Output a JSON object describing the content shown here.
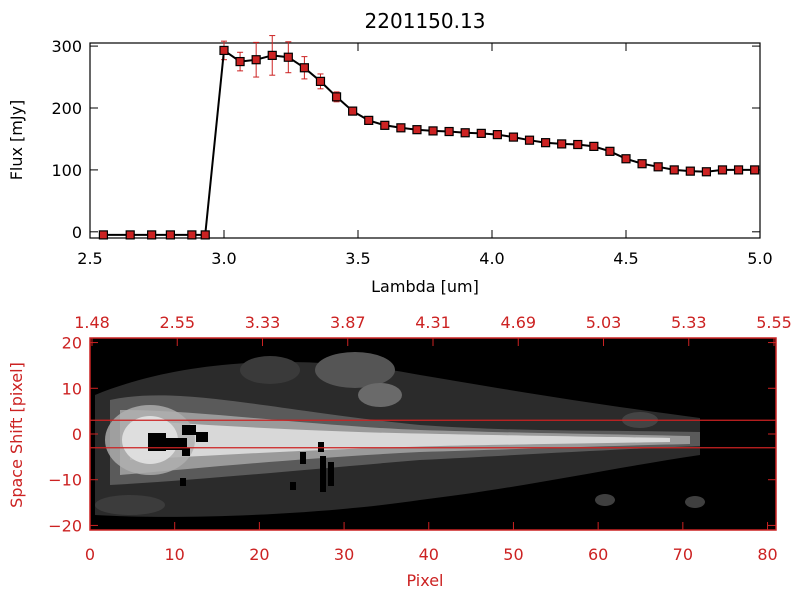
{
  "colors": {
    "axis_black": "#000000",
    "axis_red": "#cc2222",
    "marker_red": "#cc2222",
    "errorbar_red": "#cc2222",
    "background": "#ffffff",
    "image_background": "#000000"
  },
  "chart_data": [
    {
      "id": "spectrum",
      "type": "line",
      "title": "2201150.13",
      "xlabel": "Lambda [um]",
      "ylabel": "Flux [mJy]",
      "xlim": [
        2.5,
        5.0
      ],
      "ylim": [
        -10,
        305
      ],
      "xticks": [
        2.5,
        3.0,
        3.5,
        4.0,
        4.5,
        5.0
      ],
      "xtick_labels": [
        "2.5",
        "3.0",
        "3.5",
        "4.0",
        "4.5",
        "5.0"
      ],
      "yticks": [
        0,
        100,
        200,
        300
      ],
      "ytick_labels": [
        "0",
        "100",
        "200",
        "300"
      ],
      "grid": false,
      "legend": "none",
      "series": [
        {
          "marker": "square",
          "x": [
            2.55,
            2.65,
            2.73,
            2.8,
            2.88,
            2.93,
            3.0,
            3.06,
            3.12,
            3.18,
            3.24,
            3.3,
            3.36,
            3.42,
            3.48,
            3.54,
            3.6,
            3.66,
            3.72,
            3.78,
            3.84,
            3.9,
            3.96,
            4.02,
            4.08,
            4.14,
            4.2,
            4.26,
            4.32,
            4.38,
            4.44,
            4.5,
            4.56,
            4.62,
            4.68,
            4.74,
            4.8,
            4.86,
            4.92,
            4.98
          ],
          "y": [
            -5,
            -5,
            -5,
            -5,
            -5,
            -5,
            293,
            275,
            278,
            285,
            282,
            265,
            243,
            218,
            195,
            180,
            172,
            168,
            165,
            163,
            162,
            160,
            159,
            157,
            153,
            148,
            144,
            142,
            141,
            138,
            130,
            118,
            110,
            105,
            100,
            98,
            97,
            100,
            100,
            100
          ],
          "yerr": [
            0,
            0,
            0,
            0,
            0,
            0,
            15,
            15,
            28,
            32,
            25,
            18,
            12,
            8,
            6,
            4,
            4,
            3,
            3,
            3,
            3,
            3,
            3,
            3,
            3,
            3,
            3,
            3,
            3,
            3,
            3,
            3,
            3,
            3,
            3,
            3,
            3,
            3,
            3,
            3
          ]
        }
      ]
    },
    {
      "id": "spectral-image",
      "type": "heatmap",
      "xlabel": "Pixel",
      "ylabel": "Space Shift [pixel]",
      "xlim": [
        0,
        81
      ],
      "ylim": [
        -21,
        21
      ],
      "xticks": [
        0,
        10,
        20,
        30,
        40,
        50,
        60,
        70,
        80
      ],
      "xtick_labels": [
        "0",
        "10",
        "20",
        "30",
        "40",
        "50",
        "60",
        "70",
        "80"
      ],
      "yticks": [
        -20,
        -10,
        0,
        10,
        20
      ],
      "ytick_labels": [
        "−20",
        "−10",
        "0",
        "10",
        "20"
      ],
      "top_axis_labels": [
        "1.48",
        "2.55",
        "3.33",
        "3.87",
        "4.31",
        "4.69",
        "5.03",
        "5.33",
        "5.55"
      ],
      "extraction_window": [
        -3,
        3
      ],
      "colormap": "grayscale",
      "legend": "none",
      "grid": false
    }
  ]
}
